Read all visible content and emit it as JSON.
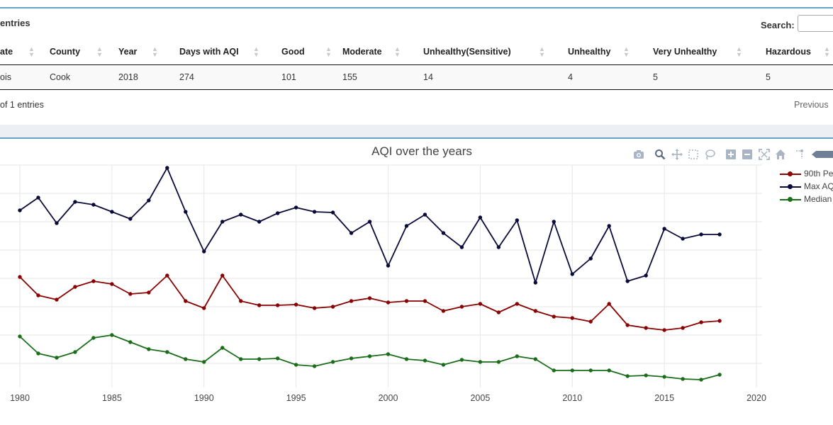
{
  "table_panel": {
    "entries_label": "entries",
    "search_label": "Search:",
    "columns": [
      {
        "label": "ate",
        "width": 58,
        "pad": 0
      },
      {
        "label": "County",
        "width": 100,
        "pad": 12
      },
      {
        "label": "Year",
        "width": 83,
        "pad": 9
      },
      {
        "label": "Days with AQI",
        "width": 147,
        "pad": 12
      },
      {
        "label": "Good",
        "width": 83,
        "pad": 9
      },
      {
        "label": "Moderate",
        "width": 114,
        "pad": 12
      },
      {
        "label": "Unhealthy(Sensitive)",
        "width": 202,
        "pad": 12
      },
      {
        "label": "Unhealthy",
        "width": 121,
        "pad": 14
      },
      {
        "label": "Very Unhealthy",
        "width": 159,
        "pad": 13
      },
      {
        "label": "Hazardous",
        "width": 108,
        "pad": 13
      }
    ],
    "row": [
      "ois",
      "Cook",
      "2018",
      "274",
      "101",
      "155",
      "14",
      "4",
      "5",
      "5"
    ],
    "info_text": "of 1 entries",
    "previous_label": "Previous"
  },
  "modebar": {
    "icons": [
      "camera-icon",
      "zoom-icon",
      "pan-icon",
      "box-select-icon",
      "lasso-icon",
      "zoom-in-icon",
      "zoom-out-icon",
      "autoscale-icon",
      "home-icon",
      "spike-lines-icon",
      "hover-icon"
    ]
  },
  "colors": {
    "p90": "#8b0000",
    "max": "#0b0b3b",
    "median": "#1a6e1a",
    "accent": "#3c8dbc",
    "grid": "#e6e6e6"
  },
  "chart_data": {
    "type": "line",
    "title": "AQI over the years",
    "xlim": [
      1979.3,
      2020.3
    ],
    "xticks": [
      "1980",
      "1985",
      "1990",
      "1995",
      "2000",
      "2005",
      "2010",
      "2015",
      "2020"
    ],
    "x": [
      1980,
      1981,
      1982,
      1983,
      1984,
      1985,
      1986,
      1987,
      1988,
      1989,
      1990,
      1991,
      1992,
      1993,
      1994,
      1995,
      1996,
      1997,
      1998,
      1999,
      2000,
      2001,
      2002,
      2003,
      2004,
      2005,
      2006,
      2007,
      2008,
      2009,
      2010,
      2011,
      2012,
      2013,
      2014,
      2015,
      2016,
      2017,
      2018
    ],
    "series": [
      {
        "name": "90th Pe",
        "color_key": "p90",
        "values": [
          121,
          108,
          105,
          114,
          118,
          116,
          109,
          110,
          122,
          104,
          99,
          122,
          104,
          101,
          101,
          101.5,
          99,
          100,
          104,
          106,
          103,
          104,
          104,
          97,
          100,
          102,
          96,
          102,
          97,
          93,
          92,
          89.5,
          102,
          87,
          85,
          83.5,
          85,
          89,
          90
        ]
      },
      {
        "name": "Max AQ",
        "color_key": "max",
        "values": [
          168,
          177,
          159,
          174,
          172,
          167,
          162,
          175,
          198,
          167,
          139,
          160,
          165,
          160,
          166,
          170,
          167,
          166.5,
          152,
          160,
          129,
          157,
          165,
          152,
          142,
          163,
          142,
          161,
          117,
          160,
          123,
          134,
          157,
          118,
          122,
          155,
          148,
          151,
          151
        ]
      },
      {
        "name": "Median",
        "color_key": "median",
        "values": [
          79,
          67,
          64,
          68,
          78,
          80,
          75,
          70,
          68,
          63,
          61,
          71,
          63,
          63,
          63.5,
          59,
          58,
          61,
          63.5,
          65,
          66.5,
          63,
          62,
          59,
          62.5,
          61,
          61,
          65,
          63,
          55,
          55,
          55,
          55,
          51,
          51.5,
          50.5,
          49,
          48.5,
          52
        ]
      }
    ]
  }
}
